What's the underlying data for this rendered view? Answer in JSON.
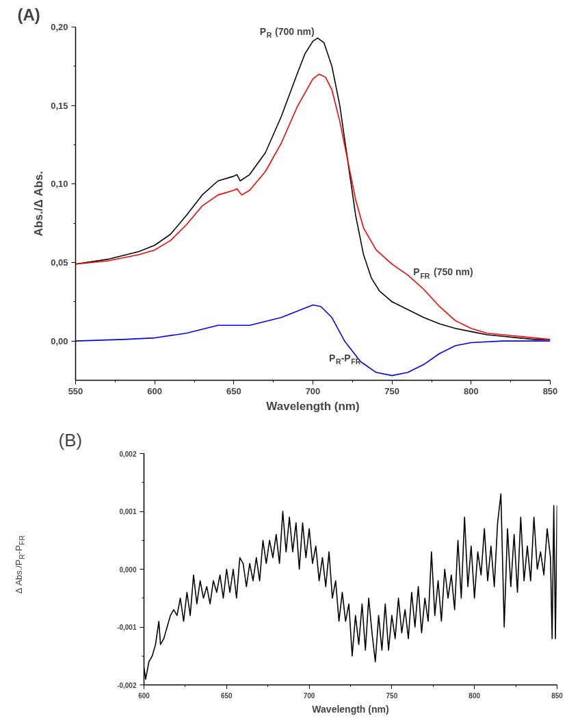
{
  "chart_data": [
    {
      "type": "line",
      "title": "(A)",
      "xlabel": "Wavelength (nm)",
      "ylabel": "Abs./Δ Abs.",
      "xlim": [
        550,
        850
      ],
      "ylim": [
        -0.025,
        0.2
      ],
      "xticks": [
        {
          "value": 550,
          "label": "550"
        },
        {
          "value": 575,
          "label": null
        },
        {
          "value": 600,
          "label": "600"
        },
        {
          "value": 625,
          "label": null
        },
        {
          "value": 650,
          "label": "650"
        },
        {
          "value": 675,
          "label": null
        },
        {
          "value": 700,
          "label": "700"
        },
        {
          "value": 725,
          "label": null
        },
        {
          "value": 750,
          "label": "750"
        },
        {
          "value": 775,
          "label": null
        },
        {
          "value": 800,
          "label": "800"
        },
        {
          "value": 825,
          "label": null
        },
        {
          "value": 850,
          "label": "850"
        }
      ],
      "yticks": [
        {
          "value": 0,
          "label": "0,00"
        },
        {
          "value": 0.025,
          "label": null
        },
        {
          "value": 0.05,
          "label": "0,05"
        },
        {
          "value": 0.075,
          "label": null
        },
        {
          "value": 0.1,
          "label": "0,10"
        },
        {
          "value": 0.125,
          "label": null
        },
        {
          "value": 0.15,
          "label": "0,15"
        },
        {
          "value": 0.175,
          "label": null
        },
        {
          "value": 0.2,
          "label": "0,20"
        }
      ],
      "series": [
        {
          "color": "#000000",
          "x": [
            550,
            570,
            590,
            600,
            610,
            620,
            630,
            640,
            650,
            652,
            654,
            660,
            670,
            680,
            690,
            695,
            700,
            703,
            707,
            712,
            717,
            722,
            727,
            732,
            737,
            742,
            750,
            760,
            770,
            780,
            790,
            800,
            810,
            820,
            830,
            840,
            850
          ],
          "values": [
            0.049,
            0.052,
            0.057,
            0.061,
            0.068,
            0.08,
            0.093,
            0.102,
            0.105,
            0.106,
            0.102,
            0.106,
            0.12,
            0.143,
            0.17,
            0.183,
            0.191,
            0.193,
            0.19,
            0.175,
            0.15,
            0.115,
            0.08,
            0.055,
            0.04,
            0.032,
            0.025,
            0.02,
            0.015,
            0.011,
            0.008,
            0.006,
            0.004,
            0.003,
            0.002,
            0.001,
            0.001
          ]
        },
        {
          "color": "#ff0000",
          "x": [
            550,
            570,
            590,
            600,
            610,
            620,
            630,
            640,
            650,
            652,
            655,
            660,
            670,
            680,
            690,
            700,
            704,
            708,
            712,
            717,
            722,
            727,
            732,
            740,
            750,
            760,
            770,
            780,
            790,
            800,
            810,
            820,
            830,
            840,
            850
          ],
          "values": [
            0.049,
            0.051,
            0.055,
            0.058,
            0.064,
            0.074,
            0.086,
            0.093,
            0.096,
            0.097,
            0.093,
            0.096,
            0.108,
            0.126,
            0.149,
            0.167,
            0.17,
            0.168,
            0.16,
            0.14,
            0.115,
            0.09,
            0.072,
            0.058,
            0.049,
            0.042,
            0.033,
            0.022,
            0.013,
            0.008,
            0.005,
            0.004,
            0.003,
            0.002,
            0.001
          ]
        },
        {
          "color": "#0000ff",
          "x": [
            550,
            580,
            600,
            620,
            640,
            660,
            680,
            700,
            705,
            712,
            720,
            730,
            740,
            750,
            760,
            770,
            780,
            790,
            800,
            820,
            850
          ],
          "values": [
            0,
            0.001,
            0.002,
            0.005,
            0.01,
            0.01,
            0.015,
            0.023,
            0.022,
            0.015,
            0,
            -0.013,
            -0.02,
            -0.022,
            -0.02,
            -0.015,
            -0.008,
            -0.003,
            -0.001,
            0,
            0
          ]
        }
      ],
      "annotations": [
        {
          "text": "P$_{R}$ (700 nm)",
          "x": 703,
          "y": 0.193
        },
        {
          "text": "P$_{FR}$ (750 nm)",
          "x": 760,
          "y": 0.044
        },
        {
          "text": "P$_{R}$-P$_{FR}$",
          "x": 735,
          "y": -0.015
        }
      ]
    },
    {
      "type": "line",
      "title": "(B)",
      "xlabel": "Wavelength (nm)",
      "ylabel": "Δ Abs./P$_{R}$-P$_{FR}$",
      "xlim": [
        600,
        850
      ],
      "ylim": [
        -0.002,
        0.002
      ],
      "xticks": [
        {
          "value": 600,
          "label": "600"
        },
        {
          "value": 625,
          "label": null
        },
        {
          "value": 650,
          "label": "650"
        },
        {
          "value": 675,
          "label": null
        },
        {
          "value": 700,
          "label": "700"
        },
        {
          "value": 725,
          "label": null
        },
        {
          "value": 750,
          "label": "750"
        },
        {
          "value": 775,
          "label": null
        },
        {
          "value": 800,
          "label": "800"
        },
        {
          "value": 825,
          "label": null
        },
        {
          "value": 850,
          "label": "850"
        }
      ],
      "yticks": [
        {
          "value": -0.002,
          "label": "-0,002"
        },
        {
          "value": -0.0015,
          "label": null
        },
        {
          "value": -0.001,
          "label": "-0,001"
        },
        {
          "value": -0.0005,
          "label": null
        },
        {
          "value": 0,
          "label": "0,000"
        },
        {
          "value": 0.0005,
          "label": null
        },
        {
          "value": 0.001,
          "label": "0,001"
        },
        {
          "value": 0.0015,
          "label": null
        },
        {
          "value": 0.002,
          "label": "0,002"
        }
      ],
      "series": [
        {
          "color": "#000000",
          "x": [
            600,
            601,
            603,
            605,
            607,
            609,
            610,
            612,
            614,
            616,
            618,
            620,
            622,
            624,
            626,
            628,
            630,
            632,
            634,
            636,
            638,
            640,
            642,
            644,
            646,
            648,
            650,
            652,
            654,
            656,
            658,
            660,
            662,
            664,
            666,
            668,
            670,
            672,
            674,
            676,
            678,
            680,
            682,
            684,
            686,
            688,
            690,
            692,
            694,
            696,
            698,
            700,
            702,
            704,
            706,
            708,
            710,
            712,
            714,
            716,
            718,
            720,
            722,
            724,
            726,
            728,
            730,
            732,
            734,
            736,
            738,
            740,
            742,
            744,
            746,
            748,
            750,
            752,
            754,
            756,
            758,
            760,
            762,
            764,
            766,
            768,
            770,
            772,
            774,
            776,
            778,
            780,
            782,
            784,
            786,
            788,
            790,
            792,
            794,
            796,
            798,
            800,
            802,
            804,
            806,
            808,
            810,
            812,
            814,
            816,
            818,
            820,
            822,
            824,
            826,
            828,
            830,
            832,
            834,
            836,
            838,
            840,
            842,
            844,
            846,
            847,
            848,
            849,
            850
          ],
          "values": [
            -0.0017,
            -0.0019,
            -0.0016,
            -0.0015,
            -0.0013,
            -0.0009,
            -0.0013,
            -0.0012,
            -0.001,
            -0.0008,
            -0.0007,
            -0.0008,
            -0.0005,
            -0.0009,
            -0.0004,
            -0.0008,
            -0.0001,
            -0.0006,
            -0.0002,
            -0.0005,
            -0.0003,
            -0.0006,
            -0.0002,
            -0.0004,
            -0.0001,
            -0.0005,
            0,
            -0.0004,
            0,
            -0.0005,
            0.0002,
            0.0001,
            -0.0003,
            0.0001,
            -0.0002,
            0.0002,
            -0.0002,
            0.0005,
            0.0001,
            0.0005,
            0.0002,
            0.0006,
            0.0001,
            0.001,
            0.0003,
            0.0009,
            0.0003,
            0.0008,
            0,
            0.0008,
            0.0002,
            0.0007,
            0.0001,
            0.0004,
            -0.0002,
            0.0002,
            -0.0003,
            0.0003,
            -0.0005,
            -0.0002,
            -0.0009,
            -0.0004,
            -0.0009,
            -0.0006,
            -0.0015,
            -0.0008,
            -0.0013,
            -0.0006,
            -0.0014,
            -0.0005,
            -0.0011,
            -0.0016,
            -0.0008,
            -0.0014,
            -0.0006,
            -0.0014,
            -0.0008,
            -0.0012,
            -0.0005,
            -0.0011,
            -0.0007,
            -0.0012,
            -0.0004,
            -0.001,
            -0.0003,
            -0.0011,
            -0.0005,
            -0.0009,
            0.0003,
            -0.0008,
            -0.0002,
            -0.0009,
            0,
            -0.0005,
            -0.0001,
            -0.0007,
            0.0005,
            -0.0005,
            0.0009,
            -0.0003,
            0.0004,
            -0.0005,
            0.0003,
            -0.0001,
            0.0007,
            -0.0002,
            0.0004,
            -0.0003,
            0.0008,
            0.0013,
            -0.001,
            0.0007,
            -0.0003,
            0.0006,
            -0.0004,
            0.0009,
            -0.0002,
            0.0004,
            -0.0002,
            0.0009,
            0,
            0.0003,
            -0.0001,
            0.0007,
            0.0002,
            -0.0012,
            0.0011,
            -0.0012,
            0.0011
          ]
        }
      ]
    }
  ]
}
